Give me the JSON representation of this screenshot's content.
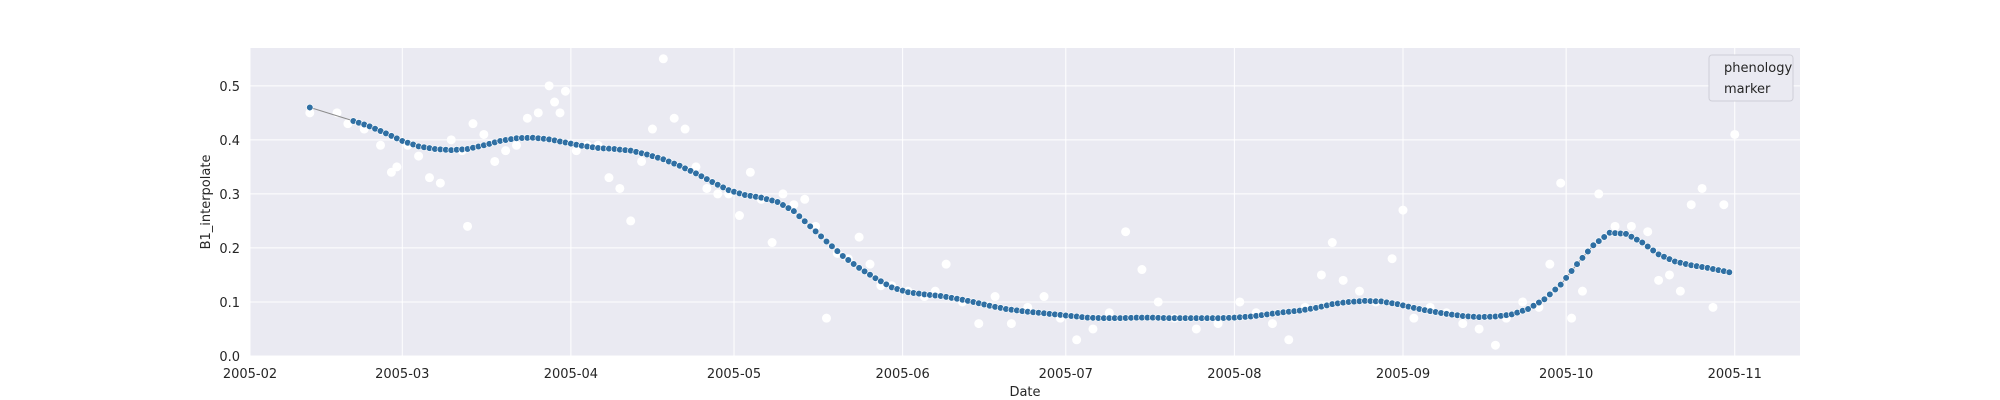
{
  "chart_data": {
    "type": "scatter",
    "title": "",
    "xlabel": "Date",
    "ylabel": "B1_interpolate",
    "x_type": "date",
    "xlim": [
      "2005-02-01",
      "2005-11-13"
    ],
    "ylim": [
      0,
      0.57
    ],
    "grid": true,
    "x_ticks": [
      {
        "value": "2005-02-01",
        "label": "2005-02"
      },
      {
        "value": "2005-03-01",
        "label": "2005-03"
      },
      {
        "value": "2005-04-01",
        "label": "2005-04"
      },
      {
        "value": "2005-05-01",
        "label": "2005-05"
      },
      {
        "value": "2005-06-01",
        "label": "2005-06"
      },
      {
        "value": "2005-07-01",
        "label": "2005-07"
      },
      {
        "value": "2005-08-01",
        "label": "2005-08"
      },
      {
        "value": "2005-09-01",
        "label": "2005-09"
      },
      {
        "value": "2005-10-01",
        "label": "2005-10"
      },
      {
        "value": "2005-11-01",
        "label": "2005-11"
      }
    ],
    "y_ticks": [
      0.0,
      0.1,
      0.2,
      0.3,
      0.4,
      0.5
    ],
    "y_tick_labels": [
      "0.0",
      "0.1",
      "0.2",
      "0.3",
      "0.4",
      "0.5"
    ],
    "legend": {
      "entries": [
        "phenology",
        "marker"
      ],
      "position": "top-right"
    },
    "colors": {
      "background": "#eaeaf2",
      "grid": "#ffffff",
      "line": "#8c8c8c",
      "interp": "#2f6fa3",
      "raw": "#ffffff"
    },
    "series": [
      {
        "role": "raw",
        "x": [
          "2005-02-12",
          "2005-02-17",
          "2005-02-19",
          "2005-02-22",
          "2005-02-25",
          "2005-02-27",
          "2005-02-28",
          "2005-03-02",
          "2005-03-04",
          "2005-03-06",
          "2005-03-08",
          "2005-03-10",
          "2005-03-12",
          "2005-03-13",
          "2005-03-14",
          "2005-03-16",
          "2005-03-18",
          "2005-03-20",
          "2005-03-22",
          "2005-03-24",
          "2005-03-26",
          "2005-03-28",
          "2005-03-29",
          "2005-03-30",
          "2005-03-31",
          "2005-04-02",
          "2005-04-04",
          "2005-04-06",
          "2005-04-08",
          "2005-04-10",
          "2005-04-12",
          "2005-04-14",
          "2005-04-16",
          "2005-04-18",
          "2005-04-20",
          "2005-04-22",
          "2005-04-24",
          "2005-04-26",
          "2005-04-28",
          "2005-04-30",
          "2005-05-02",
          "2005-05-04",
          "2005-05-06",
          "2005-05-08",
          "2005-05-10",
          "2005-05-12",
          "2005-05-14",
          "2005-05-16",
          "2005-05-18",
          "2005-05-20",
          "2005-05-22",
          "2005-05-24",
          "2005-05-26",
          "2005-05-28",
          "2005-05-30",
          "2005-06-02",
          "2005-06-05",
          "2005-06-07",
          "2005-06-09",
          "2005-06-12",
          "2005-06-15",
          "2005-06-18",
          "2005-06-21",
          "2005-06-24",
          "2005-06-27",
          "2005-06-30",
          "2005-07-03",
          "2005-07-06",
          "2005-07-09",
          "2005-07-12",
          "2005-07-15",
          "2005-07-18",
          "2005-07-21",
          "2005-07-25",
          "2005-07-29",
          "2005-08-02",
          "2005-08-05",
          "2005-08-08",
          "2005-08-11",
          "2005-08-14",
          "2005-08-17",
          "2005-08-19",
          "2005-08-21",
          "2005-08-24",
          "2005-08-27",
          "2005-08-30",
          "2005-09-01",
          "2005-09-03",
          "2005-09-06",
          "2005-09-09",
          "2005-09-12",
          "2005-09-15",
          "2005-09-18",
          "2005-09-20",
          "2005-09-23",
          "2005-09-26",
          "2005-09-28",
          "2005-09-30",
          "2005-10-02",
          "2005-10-04",
          "2005-10-07",
          "2005-10-10",
          "2005-10-13",
          "2005-10-16",
          "2005-10-18",
          "2005-10-20",
          "2005-10-22",
          "2005-10-24",
          "2005-10-26",
          "2005-10-28",
          "2005-10-30",
          "2005-11-01"
        ],
        "y": [
          0.45,
          0.45,
          0.43,
          0.42,
          0.39,
          0.34,
          0.35,
          0.39,
          0.37,
          0.33,
          0.32,
          0.4,
          0.38,
          0.24,
          0.43,
          0.41,
          0.36,
          0.38,
          0.39,
          0.44,
          0.45,
          0.5,
          0.47,
          0.45,
          0.49,
          0.38,
          0.39,
          0.39,
          0.33,
          0.31,
          0.25,
          0.36,
          0.42,
          0.55,
          0.44,
          0.42,
          0.35,
          0.31,
          0.3,
          0.3,
          0.26,
          0.34,
          0.29,
          0.21,
          0.3,
          0.28,
          0.29,
          0.24,
          0.07,
          0.19,
          0.18,
          0.22,
          0.17,
          0.13,
          0.13,
          0.12,
          0.11,
          0.12,
          0.17,
          0.1,
          0.06,
          0.11,
          0.06,
          0.09,
          0.11,
          0.07,
          0.03,
          0.05,
          0.08,
          0.23,
          0.16,
          0.1,
          0.07,
          0.05,
          0.06,
          0.1,
          0.08,
          0.06,
          0.03,
          0.09,
          0.15,
          0.21,
          0.14,
          0.12,
          0.1,
          0.18,
          0.27,
          0.07,
          0.09,
          0.08,
          0.06,
          0.05,
          0.02,
          0.07,
          0.1,
          0.09,
          0.17,
          0.32,
          0.07,
          0.12,
          0.3,
          0.24,
          0.24,
          0.23,
          0.14,
          0.15,
          0.12,
          0.28,
          0.31,
          0.09,
          0.28,
          0.41
        ]
      },
      {
        "role": "interpolated",
        "x": [
          "2005-02-12",
          "2005-02-20",
          "2005-02-23",
          "2005-02-26",
          "2005-03-01",
          "2005-03-04",
          "2005-03-07",
          "2005-03-10",
          "2005-03-13",
          "2005-03-16",
          "2005-03-19",
          "2005-03-22",
          "2005-03-25",
          "2005-03-28",
          "2005-03-31",
          "2005-04-03",
          "2005-04-06",
          "2005-04-09",
          "2005-04-12",
          "2005-04-15",
          "2005-04-18",
          "2005-04-21",
          "2005-04-24",
          "2005-04-27",
          "2005-04-30",
          "2005-05-03",
          "2005-05-06",
          "2005-05-09",
          "2005-05-12",
          "2005-05-15",
          "2005-05-18",
          "2005-05-21",
          "2005-05-24",
          "2005-05-27",
          "2005-05-30",
          "2005-06-02",
          "2005-06-05",
          "2005-06-08",
          "2005-06-11",
          "2005-06-14",
          "2005-06-17",
          "2005-06-20",
          "2005-06-23",
          "2005-06-26",
          "2005-06-29",
          "2005-07-02",
          "2005-07-05",
          "2005-07-08",
          "2005-07-11",
          "2005-07-14",
          "2005-07-17",
          "2005-07-20",
          "2005-07-23",
          "2005-07-26",
          "2005-07-29",
          "2005-08-01",
          "2005-08-04",
          "2005-08-07",
          "2005-08-10",
          "2005-08-13",
          "2005-08-16",
          "2005-08-19",
          "2005-08-22",
          "2005-08-25",
          "2005-08-28",
          "2005-08-31",
          "2005-09-03",
          "2005-09-06",
          "2005-09-09",
          "2005-09-12",
          "2005-09-15",
          "2005-09-18",
          "2005-09-21",
          "2005-09-24",
          "2005-09-27",
          "2005-09-30",
          "2005-10-03",
          "2005-10-06",
          "2005-10-09",
          "2005-10-12",
          "2005-10-15",
          "2005-10-18",
          "2005-10-21",
          "2005-10-24",
          "2005-10-27",
          "2005-10-31"
        ],
        "y": [
          0.46,
          0.435,
          0.425,
          0.412,
          0.398,
          0.388,
          0.383,
          0.381,
          0.383,
          0.39,
          0.398,
          0.403,
          0.404,
          0.401,
          0.395,
          0.389,
          0.385,
          0.383,
          0.38,
          0.373,
          0.364,
          0.352,
          0.338,
          0.322,
          0.307,
          0.298,
          0.293,
          0.285,
          0.268,
          0.24,
          0.212,
          0.185,
          0.163,
          0.144,
          0.127,
          0.118,
          0.114,
          0.111,
          0.106,
          0.1,
          0.093,
          0.087,
          0.083,
          0.08,
          0.077,
          0.074,
          0.071,
          0.07,
          0.07,
          0.071,
          0.071,
          0.07,
          0.07,
          0.07,
          0.07,
          0.071,
          0.073,
          0.077,
          0.081,
          0.084,
          0.089,
          0.096,
          0.1,
          0.102,
          0.101,
          0.096,
          0.089,
          0.083,
          0.078,
          0.074,
          0.072,
          0.073,
          0.077,
          0.087,
          0.105,
          0.132,
          0.17,
          0.205,
          0.228,
          0.226,
          0.21,
          0.188,
          0.175,
          0.168,
          0.163,
          0.155
        ]
      }
    ]
  }
}
